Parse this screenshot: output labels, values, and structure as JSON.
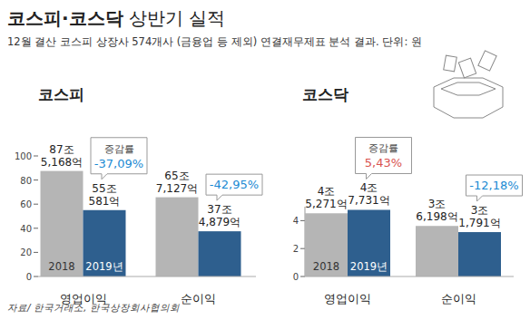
{
  "title": "코스피·코스닥 상반기 실적",
  "subtitle": "12월 결산 코스피 상장사 574개사 (금융업 등 제외) 연결재무제표 분석 결과. 단위: 원",
  "source": "자료/ 한국거래소, 한국상장회사협의회",
  "chart_data": [
    {
      "type": "bar",
      "title": "코스피",
      "categories": [
        "영업이익",
        "순이익"
      ],
      "series": [
        {
          "name": "2018",
          "color": "#b5b5b5",
          "values": [
            87.5168,
            65.7127
          ],
          "value_labels": [
            "87조 5,168억",
            "65조 7,127억"
          ]
        },
        {
          "name": "2019년",
          "color": "#2e5f8e",
          "values": [
            55.0581,
            37.4879
          ],
          "value_labels": [
            "55조 581억",
            "37조 4,879억"
          ]
        }
      ],
      "ylim": [
        0,
        100
      ],
      "yticks": [
        0,
        20,
        40,
        60,
        80,
        100
      ],
      "data_labels": true,
      "change": {
        "label": "증감률",
        "values": [
          -37.09,
          -42.95
        ],
        "value_labels": [
          "-37,09%",
          "-42,95%"
        ]
      }
    },
    {
      "type": "bar",
      "title": "코스닥",
      "categories": [
        "영업이익",
        "순이익"
      ],
      "series": [
        {
          "name": "2018",
          "color": "#b5b5b5",
          "values": [
            4.5271,
            3.6198
          ],
          "value_labels": [
            "4조 5,271억",
            "3조 6,198억"
          ]
        },
        {
          "name": "2019년",
          "color": "#2e5f8e",
          "values": [
            4.7731,
            3.1791
          ],
          "value_labels": [
            "4조 7,731억",
            "3조 1,791억"
          ]
        }
      ],
      "ylim": [
        0,
        5
      ],
      "yticks": [
        0,
        2,
        4
      ],
      "data_labels": true,
      "change": {
        "label": "증감률",
        "values": [
          5.43,
          -12.18
        ],
        "value_labels": [
          "5,43%",
          "-12,18%"
        ]
      }
    }
  ]
}
